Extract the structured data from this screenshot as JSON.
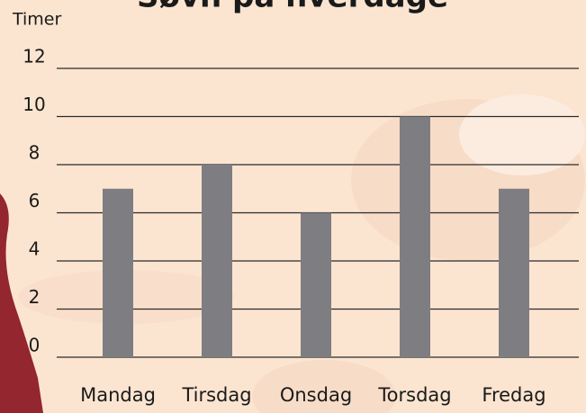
{
  "chart_data": {
    "type": "bar",
    "title": "Søvn på hverdage",
    "y_label": "Timer",
    "categories": [
      "Mandag",
      "Tirsdag",
      "Onsdag",
      "Torsdag",
      "Fredag"
    ],
    "values": [
      7,
      8,
      6,
      10,
      7
    ],
    "color": "#7e7e82",
    "ylim": [
      0,
      12
    ],
    "yticks": [
      0,
      2,
      4,
      6,
      8,
      10,
      12
    ],
    "grid": true
  }
}
